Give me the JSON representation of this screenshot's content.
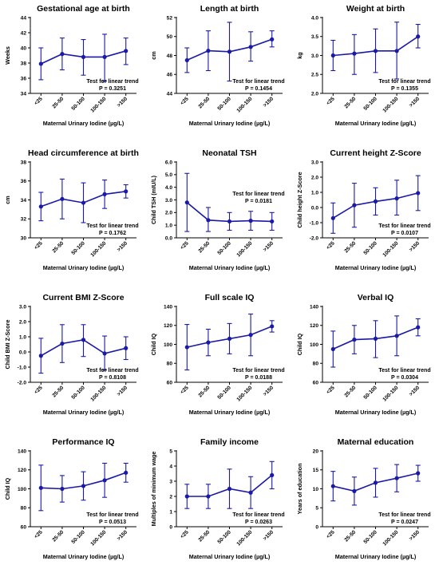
{
  "colors": {
    "series": "#1a1aa6",
    "axis": "#000000"
  },
  "chart_data": [
    {
      "type": "line",
      "title": "Gestational age at birth",
      "xlabel": "Maternal Urinary Iodine (µg/L)",
      "ylabel": "Weeks",
      "categories": [
        "<25",
        "25-50",
        "50-100",
        "100-150",
        ">150"
      ],
      "ylim": [
        34,
        44
      ],
      "yticks": [
        "34",
        "36",
        "38",
        "40",
        "42",
        "44"
      ],
      "values": [
        37.9,
        39.2,
        38.8,
        38.8,
        39.6
      ],
      "err_low": [
        35.8,
        37.1,
        36.4,
        35.6,
        37.8
      ],
      "err_high": [
        40.0,
        41.3,
        41.1,
        41.8,
        41.3
      ],
      "annotation": [
        "Test for linear trend",
        "P = 0.3251"
      ],
      "annot_pos": "bottom-right"
    },
    {
      "type": "line",
      "title": "Length at birth",
      "xlabel": "Maternal Urinary Iodine (µg/L)",
      "ylabel": "cm",
      "categories": [
        "<25",
        "25-50",
        "50-100",
        "100-150",
        ">150"
      ],
      "ylim": [
        44,
        52
      ],
      "yticks": [
        "44",
        "46",
        "48",
        "50",
        "52"
      ],
      "values": [
        47.5,
        48.5,
        48.4,
        48.9,
        49.7
      ],
      "err_low": [
        46.2,
        46.4,
        45.3,
        47.4,
        48.9
      ],
      "err_high": [
        48.8,
        50.6,
        51.5,
        50.5,
        50.6
      ],
      "annotation": [
        "Test for linear trend",
        "P = 0.1454"
      ],
      "annot_pos": "bottom-right"
    },
    {
      "type": "line",
      "title": "Weight at birth",
      "xlabel": "Maternal Urinary Iodine (µg/L)",
      "ylabel": "kg",
      "categories": [
        "<25",
        "25-50",
        "50-100",
        "100-150",
        ">150"
      ],
      "ylim": [
        2.0,
        4.0
      ],
      "yticks": [
        "2.0",
        "2.5",
        "3.0",
        "3.5",
        "4.0"
      ],
      "values": [
        3.0,
        3.05,
        3.12,
        3.12,
        3.5
      ],
      "err_low": [
        2.6,
        2.5,
        2.55,
        2.38,
        3.2
      ],
      "err_high": [
        3.4,
        3.55,
        3.7,
        3.88,
        3.82
      ],
      "annotation": [
        "Test for linear trend",
        "P = 0.1355"
      ],
      "annot_pos": "bottom-right"
    },
    {
      "type": "line",
      "title": "Head circumference at birth",
      "xlabel": "Maternal Urinary Iodine (µg/L)",
      "ylabel": "cm",
      "categories": [
        "<25",
        "25-50",
        "50-100",
        "100-150",
        ">150"
      ],
      "ylim": [
        30,
        38
      ],
      "yticks": [
        "30",
        "32",
        "34",
        "36",
        "38"
      ],
      "values": [
        33.3,
        34.1,
        33.7,
        34.6,
        34.9
      ],
      "err_low": [
        31.8,
        32.0,
        31.6,
        33.1,
        34.2
      ],
      "err_high": [
        34.8,
        36.2,
        35.8,
        36.1,
        35.6
      ],
      "annotation": [
        "Test for linear trend",
        "P = 0.1762"
      ],
      "annot_pos": "bottom-right"
    },
    {
      "type": "line",
      "title": "Neonatal TSH",
      "xlabel": "Maternal Urinary Iodine (µg/L)",
      "ylabel": "Child TSH (mIU/L)",
      "categories": [
        "<25",
        "25-50",
        "50-100",
        "100-150",
        ">150"
      ],
      "ylim": [
        0.0,
        6.0
      ],
      "yticks": [
        "0.0",
        "1.0",
        "2.0",
        "3.0",
        "4.0",
        "5.0",
        "6.0"
      ],
      "values": [
        2.8,
        1.4,
        1.3,
        1.35,
        1.3
      ],
      "err_low": [
        0.5,
        0.5,
        0.6,
        0.6,
        0.6
      ],
      "err_high": [
        5.1,
        2.4,
        2.0,
        2.1,
        2.0
      ],
      "annotation": [
        "Test for linear trend",
        "P = 0.0181"
      ],
      "annot_pos": "mid-right"
    },
    {
      "type": "line",
      "title": "Current height Z-Score",
      "xlabel": "Maternal Urinary Iodine (µg/L)",
      "ylabel": "Child height Z-Score",
      "categories": [
        "<25",
        "25-50",
        "50-100",
        "100-150",
        ">150"
      ],
      "ylim": [
        -2.0,
        3.0
      ],
      "yticks": [
        "-2.0",
        "-1.0",
        "0.0",
        "1.0",
        "2.0",
        "3.0"
      ],
      "values": [
        -0.7,
        0.15,
        0.4,
        0.6,
        0.95
      ],
      "err_low": [
        -1.7,
        -1.3,
        -0.5,
        -0.5,
        -0.2
      ],
      "err_high": [
        0.3,
        1.6,
        1.3,
        1.8,
        2.1
      ],
      "annotation": [
        "Test for linear trend",
        "P = 0.0107"
      ],
      "annot_pos": "bottom-right"
    },
    {
      "type": "line",
      "title": "Current BMI Z-Score",
      "xlabel": "Maternal Urinary Iodine (µg/L)",
      "ylabel": "Child BMI Z-Score",
      "categories": [
        "<25",
        "25-50",
        "50-100",
        "100-150",
        ">150"
      ],
      "ylim": [
        -2.0,
        3.0
      ],
      "yticks": [
        "-2.0",
        "-1.0",
        "0.0",
        "1.0",
        "2.0",
        "3.0"
      ],
      "values": [
        -0.25,
        0.55,
        0.8,
        -0.1,
        0.25
      ],
      "err_low": [
        -1.4,
        -0.7,
        -0.3,
        -1.2,
        -0.5
      ],
      "err_high": [
        0.9,
        1.8,
        1.8,
        1.05,
        1.0
      ],
      "annotation": [
        "Test for linear trend",
        "P = 0.8108"
      ],
      "annot_pos": "bottom-right"
    },
    {
      "type": "line",
      "title": "Full scale IQ",
      "xlabel": "Maternal Urinary Iodine (µg/L)",
      "ylabel": "Child IQ",
      "categories": [
        "<25",
        "25-50",
        "50-100",
        "100-150",
        ">150"
      ],
      "ylim": [
        60,
        140
      ],
      "yticks": [
        "60",
        "80",
        "100",
        "120",
        "140"
      ],
      "values": [
        97,
        102,
        106,
        110,
        119
      ],
      "err_low": [
        73,
        88,
        90,
        88,
        113
      ],
      "err_high": [
        121,
        116,
        122,
        132,
        125
      ],
      "annotation": [
        "Test for linear trend",
        "P = 0.0188"
      ],
      "annot_pos": "bottom-right"
    },
    {
      "type": "line",
      "title": "Verbal IQ",
      "xlabel": "Maternal Urinary Iodine (µg/L)",
      "ylabel": "Child IQ",
      "categories": [
        "<25",
        "25-50",
        "50-100",
        "100-150",
        ">150"
      ],
      "ylim": [
        60,
        140
      ],
      "yticks": [
        "60",
        "80",
        "100",
        "120",
        "140"
      ],
      "values": [
        95,
        105,
        106,
        109,
        118
      ],
      "err_low": [
        76,
        90,
        86,
        88,
        109
      ],
      "err_high": [
        114,
        120,
        125,
        130,
        127
      ],
      "annotation": [
        "Test for linear trend",
        "P = 0.0304"
      ],
      "annot_pos": "bottom-right"
    },
    {
      "type": "line",
      "title": "Performance IQ",
      "xlabel": "Maternal Urinary Iodine (µg/L)",
      "ylabel": "Child IQ",
      "categories": [
        "<25",
        "25-50",
        "50-100",
        "100-150",
        ">150"
      ],
      "ylim": [
        60,
        140
      ],
      "yticks": [
        "60",
        "80",
        "100",
        "120",
        "140"
      ],
      "values": [
        101,
        100,
        103,
        109,
        117
      ],
      "err_low": [
        77,
        86,
        88,
        91,
        107
      ],
      "err_high": [
        125,
        114,
        118,
        127,
        127
      ],
      "annotation": [
        "Test for linear trend",
        "P = 0.0513"
      ],
      "annot_pos": "bottom-right"
    },
    {
      "type": "line",
      "title": "Family income",
      "xlabel": "Maternal Urinary Iodine (µg/L)",
      "ylabel": "Multiples of minimum wage",
      "categories": [
        "<25",
        "25-50",
        "50-100",
        "100-150",
        ">150"
      ],
      "ylim": [
        0,
        5
      ],
      "yticks": [
        "0",
        "1",
        "2",
        "3",
        "4",
        "5"
      ],
      "values": [
        2.0,
        2.0,
        2.5,
        2.25,
        3.4
      ],
      "err_low": [
        1.2,
        1.2,
        1.2,
        1.2,
        2.5
      ],
      "err_high": [
        2.8,
        2.8,
        3.8,
        3.3,
        4.3
      ],
      "annotation": [
        "Test for linear trend",
        "P = 0.0263"
      ],
      "annot_pos": "bottom-right"
    },
    {
      "type": "line",
      "title": "Maternal education",
      "xlabel": "Maternal Urinary Iodine (µg/L)",
      "ylabel": "Years of education",
      "categories": [
        "<25",
        "25-50",
        "50-100",
        "100-150",
        ">150"
      ],
      "ylim": [
        0,
        20
      ],
      "yticks": [
        "0",
        "5",
        "10",
        "15",
        "20"
      ],
      "values": [
        10.7,
        9.4,
        11.6,
        12.8,
        14.1
      ],
      "err_low": [
        6.8,
        5.7,
        7.8,
        9.2,
        12.0
      ],
      "err_high": [
        14.6,
        13.1,
        15.4,
        16.4,
        16.2
      ],
      "annotation": [
        "Test for linear trend",
        "P = 0.0247"
      ],
      "annot_pos": "bottom-right"
    }
  ]
}
